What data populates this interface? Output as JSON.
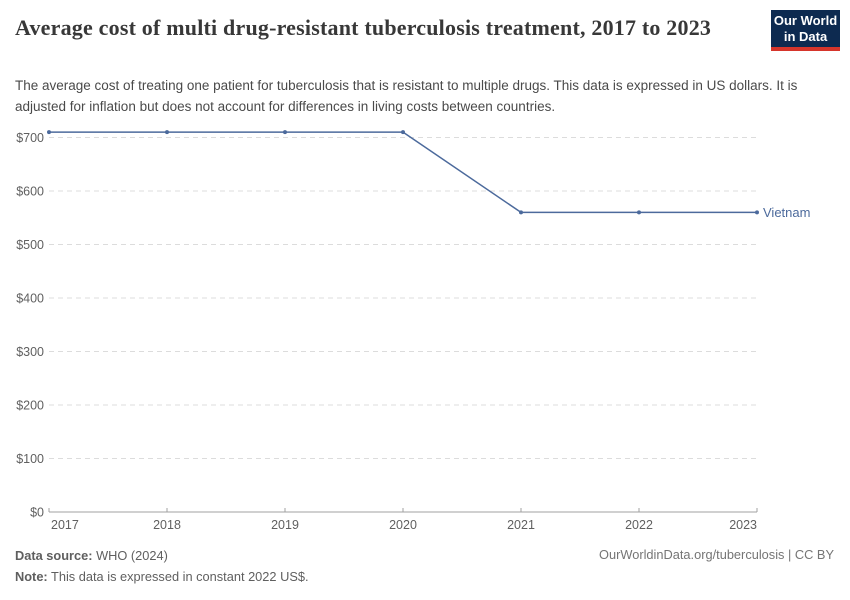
{
  "header": {
    "title": "Average cost of multi drug-resistant tuberculosis treatment, 2017 to 2023",
    "subtitle": "The average cost of treating one patient for tuberculosis that is resistant to multiple drugs. This data is expressed in US dollars. It is adjusted for inflation but does not account for differences in living costs between countries.",
    "logo": {
      "line1": "Our World",
      "line2": "in Data"
    }
  },
  "chart_data": {
    "type": "line",
    "title": "Average cost of multi drug-resistant tuberculosis treatment, 2017 to 2023",
    "x": [
      2017,
      2018,
      2019,
      2020,
      2021,
      2022,
      2023
    ],
    "series": [
      {
        "name": "Vietnam",
        "color": "#4C6A9C",
        "values": [
          710,
          710,
          710,
          710,
          560,
          560,
          560
        ]
      }
    ],
    "xlabel": "",
    "ylabel": "",
    "ytick_prefix": "$",
    "yticks": [
      0,
      100,
      200,
      300,
      400,
      500,
      600,
      700
    ],
    "ylim": [
      0,
      715
    ],
    "xlim": [
      2017,
      2023
    ],
    "grid": "horizontal-dashed",
    "legend_position": "label-at-line-end"
  },
  "footer": {
    "data_source_label": "Data source:",
    "data_source_value": "WHO (2024)",
    "note_label": "Note:",
    "note_value": "This data is expressed in constant 2022 US$.",
    "link": "OurWorldinData.org/tuberculosis",
    "license": "| CC BY"
  }
}
